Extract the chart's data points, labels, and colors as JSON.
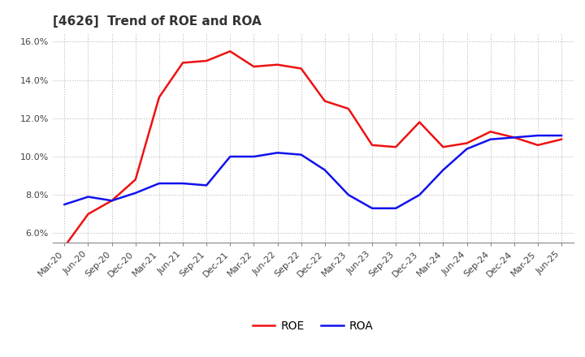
{
  "title": "[4626]  Trend of ROE and ROA",
  "x_labels": [
    "Mar-20",
    "Jun-20",
    "Sep-20",
    "Dec-20",
    "Mar-21",
    "Jun-21",
    "Sep-21",
    "Dec-21",
    "Mar-22",
    "Jun-22",
    "Sep-22",
    "Dec-22",
    "Mar-23",
    "Jun-23",
    "Sep-23",
    "Dec-23",
    "Mar-24",
    "Jun-24",
    "Sep-24",
    "Dec-24",
    "Mar-25",
    "Jun-25"
  ],
  "roe": [
    5.3,
    7.0,
    7.7,
    8.8,
    13.1,
    14.9,
    15.0,
    15.5,
    14.7,
    14.8,
    14.6,
    12.9,
    12.5,
    10.6,
    10.5,
    11.8,
    10.5,
    10.7,
    11.3,
    11.0,
    10.6,
    10.9
  ],
  "roa": [
    7.5,
    7.9,
    7.7,
    8.1,
    8.6,
    8.6,
    8.5,
    10.0,
    10.0,
    10.2,
    10.1,
    9.3,
    8.0,
    7.3,
    7.3,
    8.0,
    9.3,
    10.4,
    10.9,
    11.0,
    11.1,
    11.1
  ],
  "roe_color": "#EE1111",
  "roa_color": "#1111EE",
  "ylim": [
    5.5,
    16.5
  ],
  "yticks": [
    6.0,
    8.0,
    10.0,
    12.0,
    14.0,
    16.0
  ],
  "background_color": "#FFFFFF",
  "grid_color": "#BBBBBB",
  "title_fontsize": 11,
  "tick_fontsize": 8,
  "legend_fontsize": 10,
  "line_width": 1.8,
  "legend_labels": [
    "ROE",
    "ROA"
  ]
}
